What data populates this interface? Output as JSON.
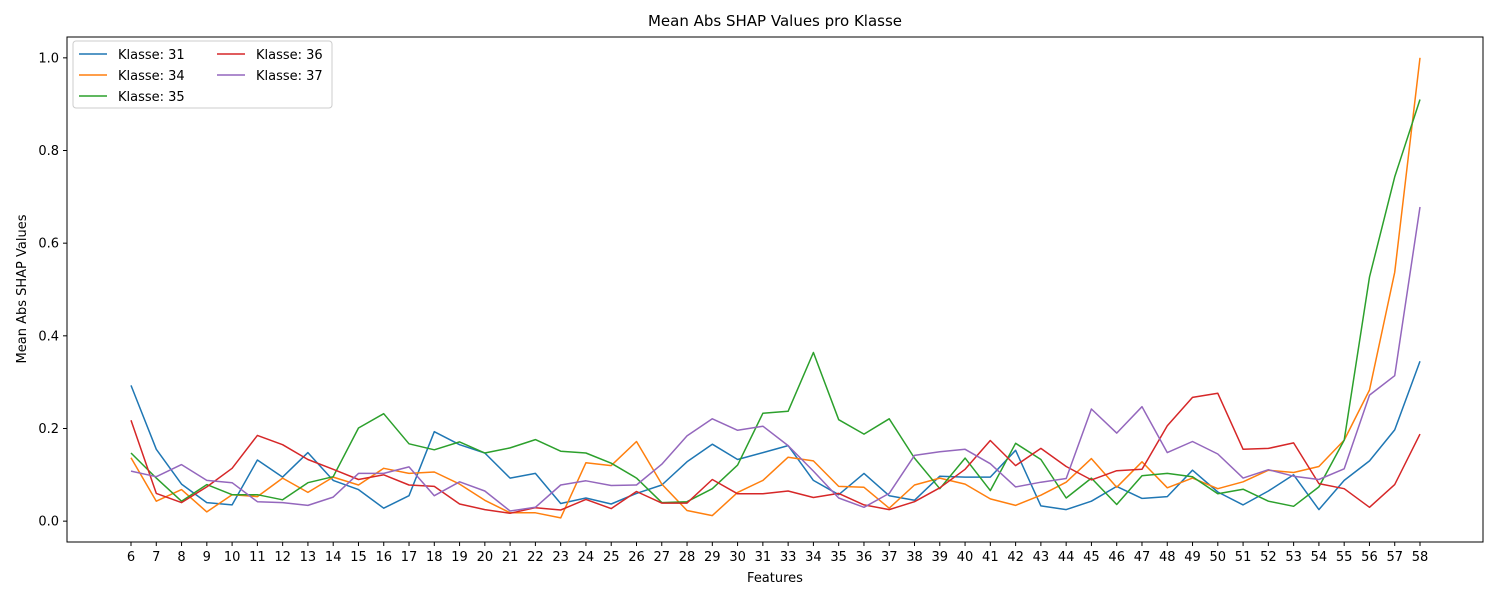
{
  "chart_data": {
    "type": "line",
    "title": "Mean Abs SHAP Values pro Klasse",
    "xlabel": "Features",
    "ylabel": "Mean Abs SHAP Values",
    "ylim": [
      -0.045,
      1.045
    ],
    "yticks": [
      "0.0",
      "0.2",
      "0.4",
      "0.6",
      "0.8",
      "1.0"
    ],
    "ytick_values": [
      0.0,
      0.2,
      0.4,
      0.6,
      0.8,
      1.0
    ],
    "legend_position": "top-left",
    "grid": false,
    "categories": [
      "6",
      "7",
      "8",
      "9",
      "10",
      "11",
      "12",
      "13",
      "14",
      "15",
      "16",
      "17",
      "18",
      "19",
      "20",
      "21",
      "22",
      "23",
      "24",
      "25",
      "26",
      "27",
      "28",
      "29",
      "30",
      "31",
      "33",
      "34",
      "35",
      "36",
      "37",
      "38",
      "39",
      "40",
      "41",
      "42",
      "43",
      "44",
      "45",
      "46",
      "47",
      "48",
      "49",
      "50",
      "51",
      "52",
      "53",
      "54",
      "55",
      "56",
      "57",
      "58"
    ],
    "series": [
      {
        "name": "Klasse: 31",
        "color": "#1f77b4",
        "values": [
          0.293,
          0.155,
          0.08,
          0.04,
          0.035,
          0.132,
          0.095,
          0.148,
          0.088,
          0.068,
          0.028,
          0.055,
          0.193,
          0.165,
          0.147,
          0.093,
          0.103,
          0.038,
          0.05,
          0.037,
          0.06,
          0.078,
          0.128,
          0.166,
          0.133,
          0.148,
          0.163,
          0.088,
          0.057,
          0.103,
          0.055,
          0.045,
          0.097,
          0.095,
          0.095,
          0.153,
          0.033,
          0.025,
          0.043,
          0.075,
          0.049,
          0.053,
          0.11,
          0.063,
          0.035,
          0.065,
          0.1,
          0.025,
          0.088,
          0.13,
          0.197,
          0.345
        ]
      },
      {
        "name": "Klasse: 34",
        "color": "#ff7f0e",
        "values": [
          0.137,
          0.043,
          0.068,
          0.02,
          0.057,
          0.053,
          0.093,
          0.062,
          0.095,
          0.078,
          0.114,
          0.103,
          0.106,
          0.08,
          0.045,
          0.018,
          0.018,
          0.007,
          0.126,
          0.12,
          0.172,
          0.08,
          0.023,
          0.012,
          0.062,
          0.088,
          0.138,
          0.13,
          0.075,
          0.073,
          0.028,
          0.078,
          0.093,
          0.08,
          0.048,
          0.034,
          0.056,
          0.084,
          0.135,
          0.073,
          0.128,
          0.072,
          0.093,
          0.07,
          0.085,
          0.11,
          0.105,
          0.118,
          0.175,
          0.283,
          0.537,
          1.0
        ]
      },
      {
        "name": "Klasse: 35",
        "color": "#2ca02c",
        "values": [
          0.147,
          0.093,
          0.043,
          0.079,
          0.057,
          0.057,
          0.046,
          0.083,
          0.096,
          0.201,
          0.232,
          0.167,
          0.154,
          0.171,
          0.147,
          0.158,
          0.176,
          0.151,
          0.147,
          0.125,
          0.093,
          0.04,
          0.042,
          0.07,
          0.121,
          0.233,
          0.237,
          0.364,
          0.219,
          0.188,
          0.221,
          0.136,
          0.07,
          0.136,
          0.066,
          0.168,
          0.133,
          0.05,
          0.093,
          0.036,
          0.098,
          0.103,
          0.096,
          0.059,
          0.069,
          0.043,
          0.032,
          0.074,
          0.175,
          0.527,
          0.743,
          0.91
        ]
      },
      {
        "name": "Klasse: 36",
        "color": "#d62728",
        "values": [
          0.218,
          0.06,
          0.04,
          0.074,
          0.114,
          0.185,
          0.165,
          0.133,
          0.112,
          0.09,
          0.1,
          0.078,
          0.075,
          0.037,
          0.025,
          0.017,
          0.029,
          0.024,
          0.047,
          0.027,
          0.064,
          0.039,
          0.039,
          0.09,
          0.059,
          0.059,
          0.065,
          0.051,
          0.06,
          0.035,
          0.025,
          0.042,
          0.072,
          0.112,
          0.174,
          0.12,
          0.157,
          0.118,
          0.089,
          0.109,
          0.112,
          0.206,
          0.267,
          0.276,
          0.155,
          0.157,
          0.169,
          0.081,
          0.07,
          0.03,
          0.079,
          0.188
        ]
      },
      {
        "name": "Klasse: 37",
        "color": "#9467bd",
        "values": [
          0.108,
          0.096,
          0.122,
          0.088,
          0.083,
          0.042,
          0.04,
          0.034,
          0.052,
          0.103,
          0.103,
          0.117,
          0.055,
          0.085,
          0.065,
          0.022,
          0.03,
          0.078,
          0.087,
          0.077,
          0.078,
          0.123,
          0.184,
          0.221,
          0.196,
          0.205,
          0.163,
          0.108,
          0.05,
          0.03,
          0.06,
          0.142,
          0.15,
          0.155,
          0.124,
          0.074,
          0.084,
          0.092,
          0.242,
          0.19,
          0.247,
          0.148,
          0.172,
          0.145,
          0.093,
          0.111,
          0.097,
          0.09,
          0.113,
          0.272,
          0.314,
          0.678
        ]
      }
    ]
  }
}
